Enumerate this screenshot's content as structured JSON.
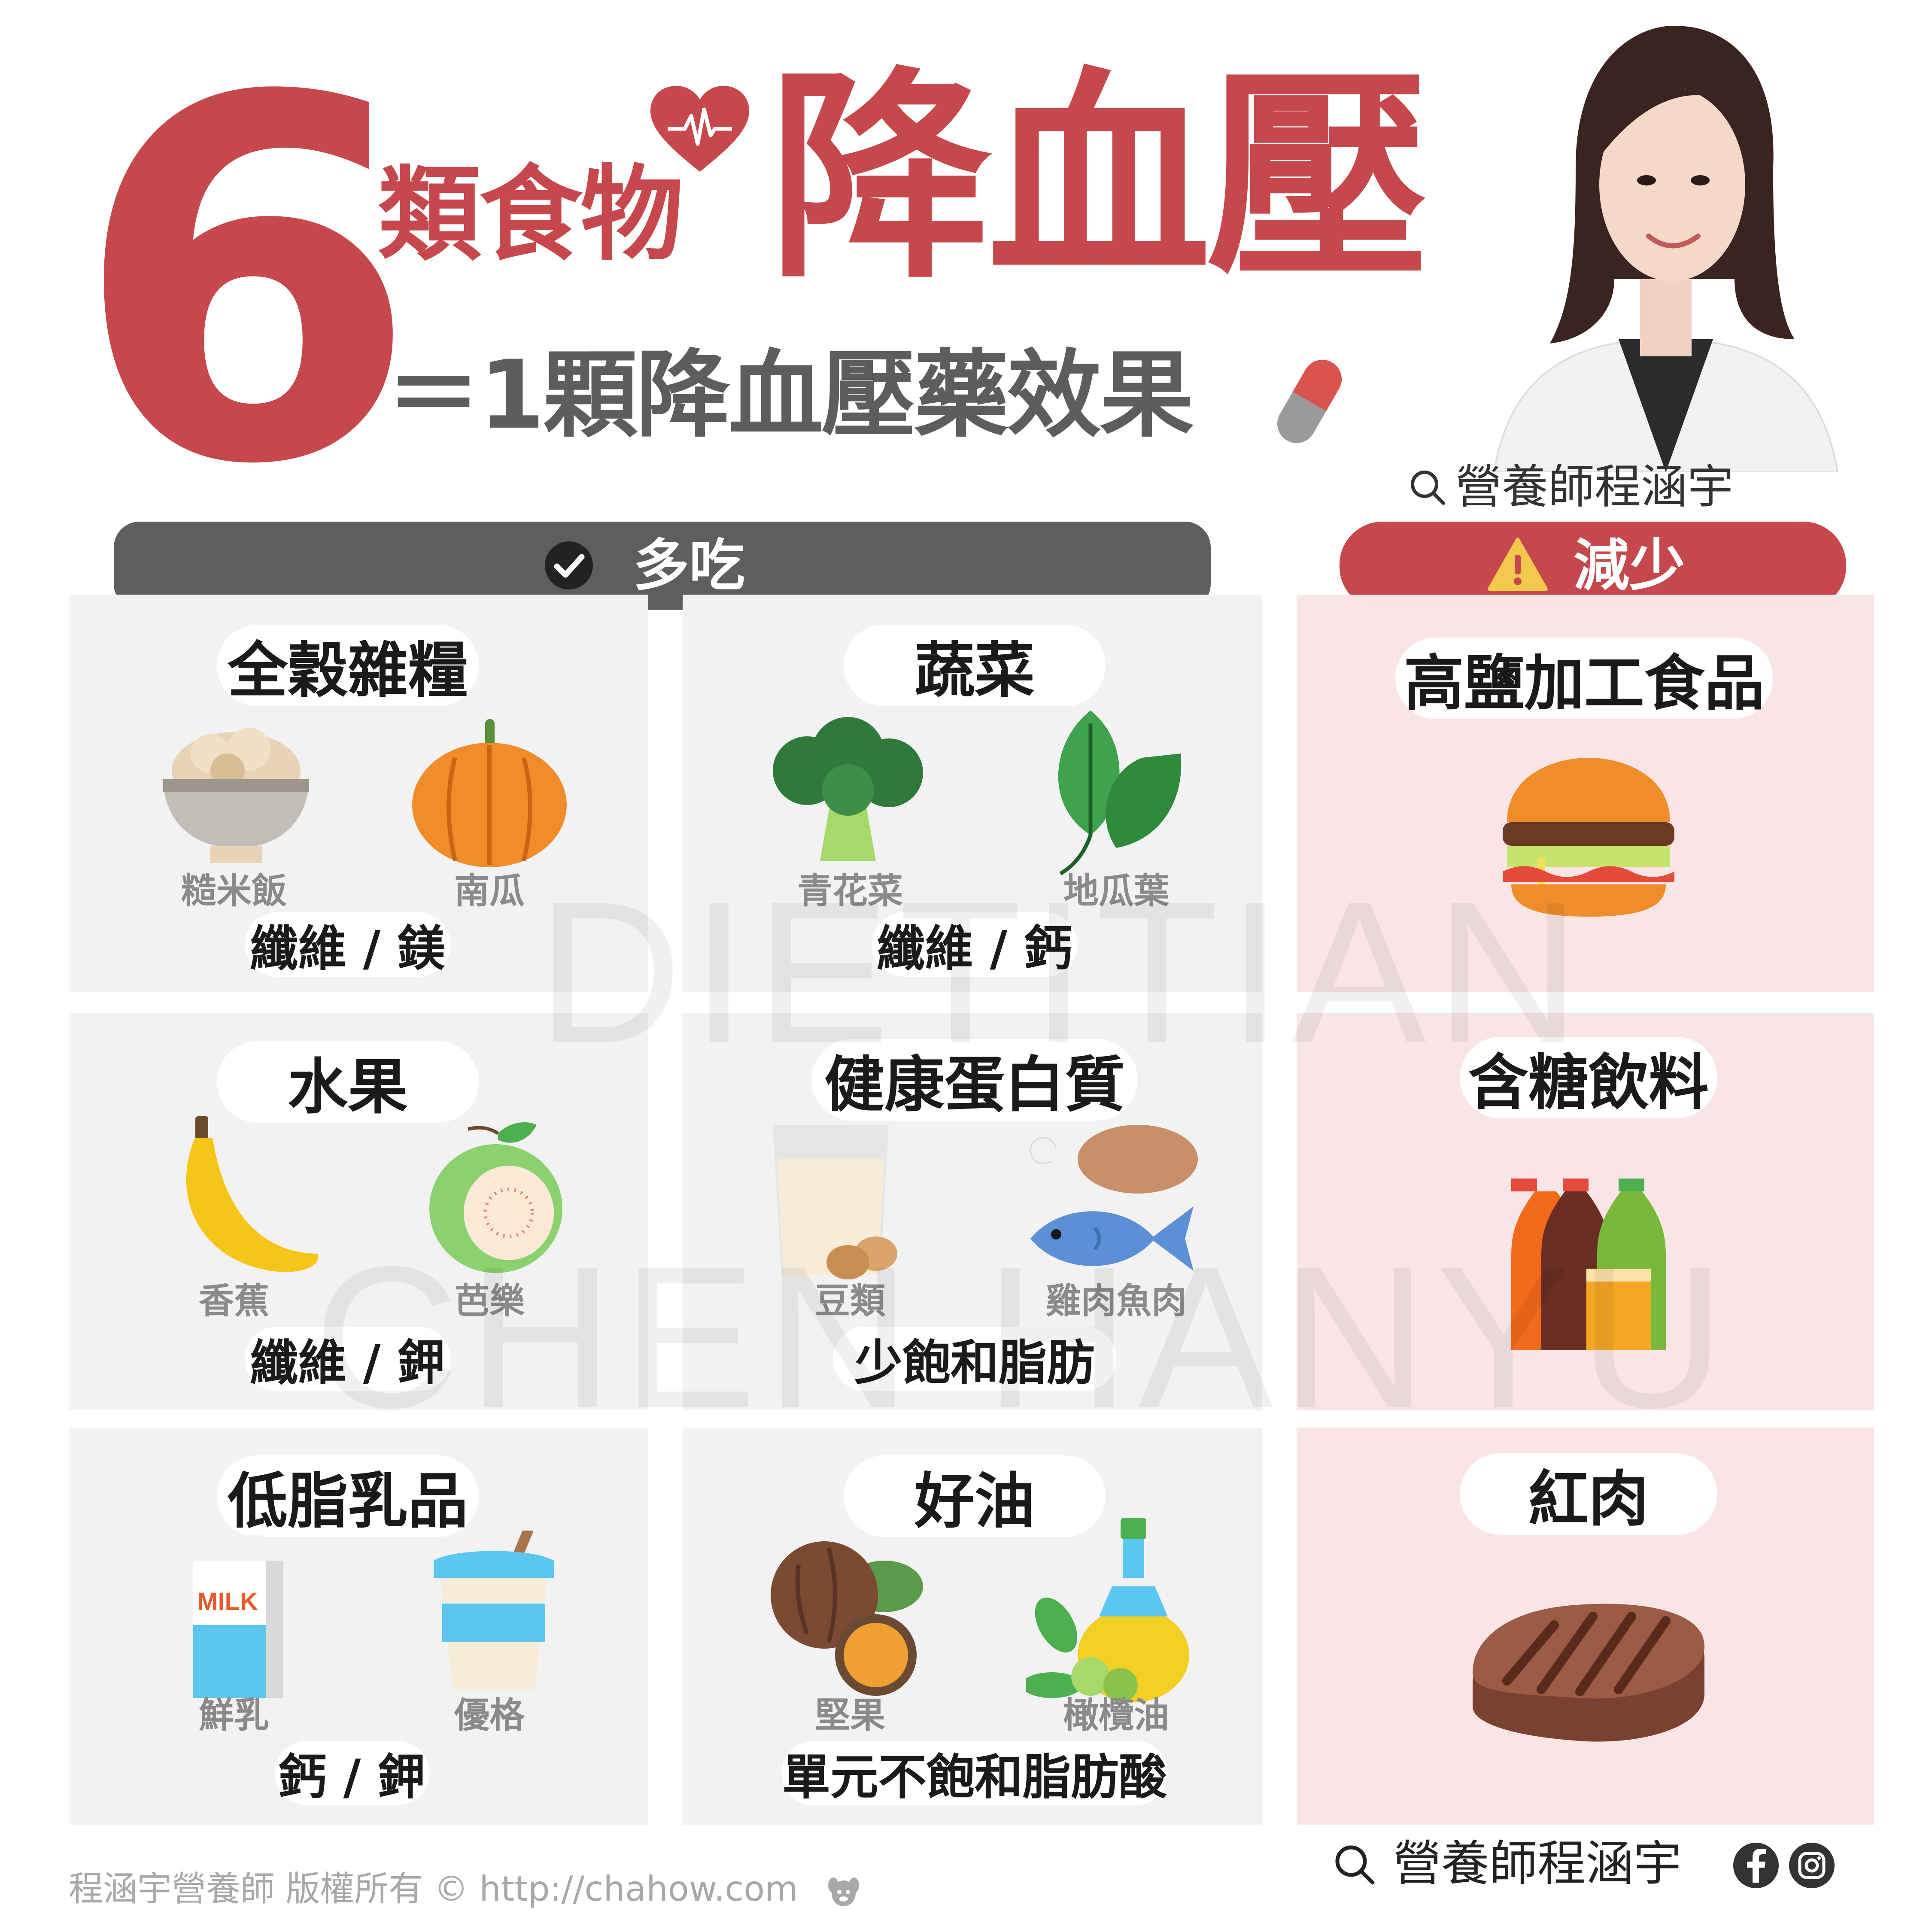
{
  "header": {
    "number": "6",
    "title_small": "類食物",
    "title_big": "降血壓",
    "subtitle": "＝1顆降血壓藥效果",
    "author_search": "營養師程涵宇"
  },
  "sections": {
    "more_label": "多吃",
    "less_label": "減少"
  },
  "more_cards": [
    {
      "title": "全穀雜糧",
      "items": [
        "糙米飯",
        "南瓜"
      ],
      "nutrient": "纖維 / 鎂"
    },
    {
      "title": "蔬菜",
      "items": [
        "青花菜",
        "地瓜葉"
      ],
      "nutrient": "纖維 / 鈣"
    },
    {
      "title": "水果",
      "items": [
        "香蕉",
        "芭樂"
      ],
      "nutrient": "纖維 / 鉀"
    },
    {
      "title": "健康蛋白質",
      "items": [
        "豆類",
        "雞肉魚肉"
      ],
      "nutrient": "少飽和脂肪"
    },
    {
      "title": "低脂乳品",
      "items": [
        "鮮乳",
        "優格"
      ],
      "nutrient": "鈣 / 鉀"
    },
    {
      "title": "好油",
      "items": [
        "堅果",
        "橄欖油"
      ],
      "nutrient": "單元不飽和脂肪酸"
    }
  ],
  "less_cards": [
    {
      "title": "高鹽加工食品"
    },
    {
      "title": "含糖飲料"
    },
    {
      "title": "紅肉"
    }
  ],
  "milk_text": "MILK",
  "watermark": [
    "DIETITIAN",
    "CHEN HANYU"
  ],
  "footer": {
    "copyright": "程涵宇營養師 版權所有 © http://chahow.com",
    "search_label": "營養師程涵宇"
  },
  "colors": {
    "brand_red": "#c6484c",
    "gray_header": "#5e5e5e",
    "card_gray": "#f2f2f2",
    "card_pink": "#f9e5e5"
  }
}
